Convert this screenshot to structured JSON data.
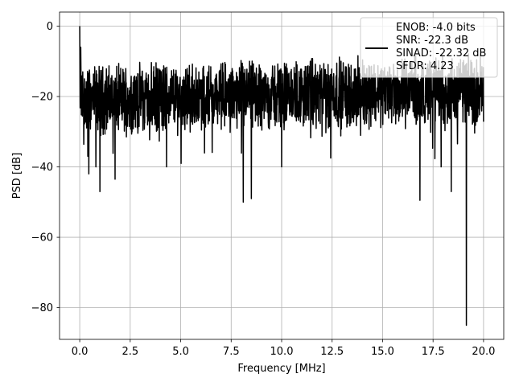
{
  "chart_data": {
    "type": "line",
    "xlabel": "Frequency [MHz]",
    "ylabel": "PSD [dB]",
    "xlim": [
      -1.0,
      21.0
    ],
    "ylim": [
      -89.0,
      4.0
    ],
    "xticks": [
      0.0,
      2.5,
      5.0,
      7.5,
      10.0,
      12.5,
      15.0,
      17.5,
      20.0
    ],
    "xtick_labels": [
      "0.0",
      "2.5",
      "5.0",
      "7.5",
      "10.0",
      "12.5",
      "15.0",
      "17.5",
      "20.0"
    ],
    "yticks": [
      0,
      -20,
      -40,
      -60,
      -80
    ],
    "ytick_labels": [
      "0",
      "−20",
      "−40",
      "−60",
      "−80"
    ],
    "grid": true,
    "legend_position": "top-right",
    "legend_lines": [
      "ENOB: -4.0 bits",
      "SNR: -22.3 dB",
      "SINAD: -22.32 dB",
      "SFDR: 4.23"
    ],
    "series": [
      {
        "color": "#000000",
        "noise_floor_db": -18.5,
        "peak_points": [
          {
            "x": 0.0,
            "y": 0.0
          },
          {
            "x": 0.05,
            "y": -6.0
          },
          {
            "x": 0.15,
            "y": -13.0
          }
        ],
        "dip_points": [
          {
            "x": 0.1,
            "y": -22.0
          },
          {
            "x": 0.4,
            "y": -37.0
          },
          {
            "x": 0.45,
            "y": -42.0
          },
          {
            "x": 0.8,
            "y": -40.0
          },
          {
            "x": 1.0,
            "y": -47.0
          },
          {
            "x": 1.75,
            "y": -43.5
          },
          {
            "x": 4.3,
            "y": -40.0
          },
          {
            "x": 8.1,
            "y": -50.0
          },
          {
            "x": 8.5,
            "y": -49.0
          },
          {
            "x": 10.0,
            "y": -40.0
          },
          {
            "x": 16.85,
            "y": -49.5
          },
          {
            "x": 17.9,
            "y": -40.0
          },
          {
            "x": 18.4,
            "y": -47.0
          },
          {
            "x": 19.15,
            "y": -85.0
          }
        ]
      }
    ]
  }
}
